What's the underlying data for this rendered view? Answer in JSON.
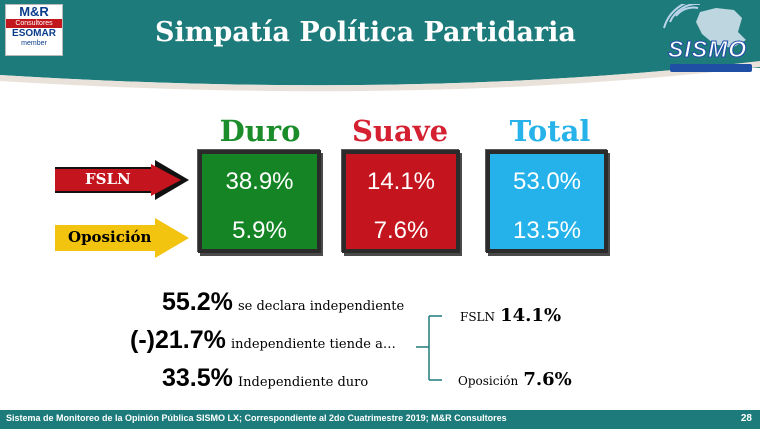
{
  "header": {
    "title": "Simpatía Política Partidaria",
    "logo_left": {
      "line1": "M&R",
      "line2": "Consultores",
      "line3": "ESOMAR",
      "line4": "member"
    },
    "logo_right": {
      "text": "SISMO"
    }
  },
  "columns": [
    "Duro",
    "Suave",
    "Total"
  ],
  "rows": [
    {
      "label": "FSLN",
      "duro": "38.9%",
      "suave": "14.1%",
      "total": "53.0%"
    },
    {
      "label": "Oposición",
      "duro": "5.9%",
      "suave": "7.6%",
      "total": "13.5%"
    }
  ],
  "stats": [
    {
      "value": "55.2%",
      "text": "se declara independiente"
    },
    {
      "value": "(-)21.7%",
      "text": "independiente tiende a…"
    },
    {
      "value": "33.5%",
      "text": "Independiente duro"
    }
  ],
  "breakdown": [
    {
      "label": "FSLN",
      "value": "14.1%"
    },
    {
      "label": "Oposición",
      "value": "7.6%"
    }
  ],
  "footer": {
    "text": "Sistema de Monitoreo de la Opinión Pública SISMO LX; Correspondiente al 2do Cuatrimestre 2019; M&R Consultores",
    "page": "28"
  },
  "colors": {
    "header": "#1e7b7c",
    "duro": "#1b8c2a",
    "suave": "#d42030",
    "total": "#27b3ea",
    "fsln_arrow": "#c4141d",
    "oposicion_arrow": "#f2c40f"
  }
}
